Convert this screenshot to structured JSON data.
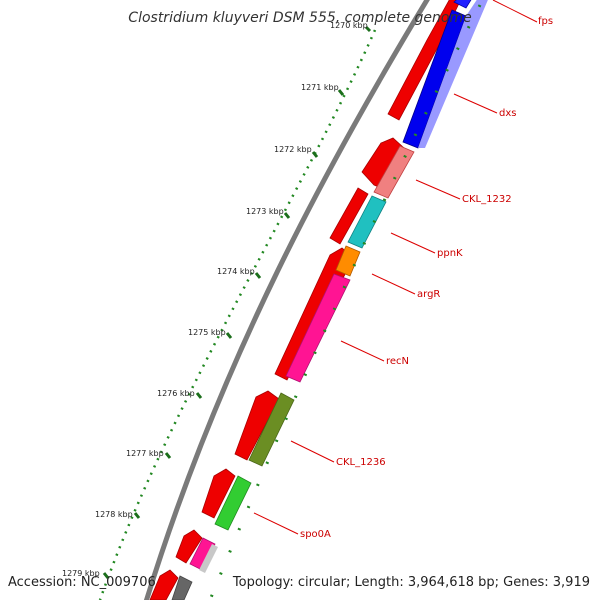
{
  "title": "Clostridium kluyveri DSM 555, complete genome",
  "footer": {
    "accession": "Accession: NC_009706",
    "topology": "Topology: circular; Length: 3,964,618 bp; Genes: 3,919"
  },
  "colors": {
    "backbone": "#777777",
    "ticks": "#228822",
    "forward_gene": "#ee0000",
    "label_text": "#cc0000"
  },
  "ticks": [
    "1270 kbp",
    "1271 kbp",
    "1272 kbp",
    "1273 kbp",
    "1274 kbp",
    "1275 kbp",
    "1276 kbp",
    "1277 kbp",
    "1278 kbp",
    "1279 kbp"
  ],
  "gene_labels": [
    {
      "name": "fps",
      "color": "#4040ff"
    },
    {
      "name": "dxs",
      "color": "#0000ee"
    },
    {
      "name": "CKL_1232",
      "color": "#f08080"
    },
    {
      "name": "ppnK",
      "color": "#20c0c0"
    },
    {
      "name": "argR",
      "color": "#ff8c00"
    },
    {
      "name": "recN",
      "color": "#ff1493"
    },
    {
      "name": "CKL_1236",
      "color": "#6b8e23"
    },
    {
      "name": "spo0A",
      "color": "#32cd32"
    }
  ]
}
